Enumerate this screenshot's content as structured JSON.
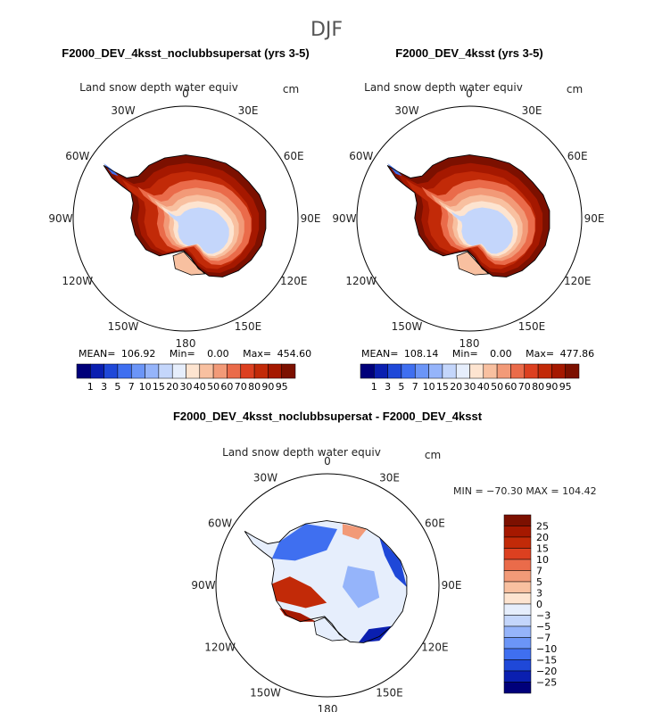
{
  "season": "DJF",
  "variable_label": "Land snow depth water equiv",
  "units": "cm",
  "lon_labels": [
    "0",
    "30E",
    "60E",
    "90E",
    "120E",
    "150E",
    "180",
    "150W",
    "120W",
    "90W",
    "60W",
    "30W"
  ],
  "panels": [
    {
      "title": "F2000_DEV_4ksst_noclubbsupersat (yrs 3-5)",
      "stats": {
        "mean_label": "MEAN=",
        "mean": "106.92",
        "min_label": "Min=",
        "min": "0.00",
        "max_label": "Max=",
        "max": "454.60"
      }
    },
    {
      "title": "F2000_DEV_4ksst (yrs 3-5)",
      "stats": {
        "mean_label": "MEAN=",
        "mean": "108.14",
        "min_label": "Min=",
        "min": "0.00",
        "max_label": "Max=",
        "max": "477.86"
      }
    }
  ],
  "diff_panel": {
    "title": "F2000_DEV_4ksst_noclubbsupersat - F2000_DEV_4ksst",
    "minmax_text": "MIN = −70.30 MAX = 104.42"
  },
  "chart_data": [
    {
      "type": "heatmap",
      "projection": "south-polar-stereographic",
      "title": "F2000_DEV_4ksst_noclubbsupersat (yrs 3-5)",
      "colorbar": {
        "levels": [
          "1",
          "3",
          "5",
          "7",
          "10",
          "15",
          "20",
          "30",
          "40",
          "50",
          "60",
          "70",
          "80",
          "90",
          "95"
        ],
        "colors": [
          "#00007a",
          "#0a1fb0",
          "#1f48d8",
          "#3f6ff0",
          "#6b95f7",
          "#95b4fa",
          "#c4d6fb",
          "#e6eefc",
          "#fde4d0",
          "#f8c0a0",
          "#f29a78",
          "#ea6b4a",
          "#dc4020",
          "#c22a08",
          "#a51800",
          "#7c1000"
        ]
      },
      "mean": 106.92,
      "min": 0.0,
      "max": 454.6
    },
    {
      "type": "heatmap",
      "projection": "south-polar-stereographic",
      "title": "F2000_DEV_4ksst (yrs 3-5)",
      "colorbar": {
        "levels": [
          "1",
          "3",
          "5",
          "7",
          "10",
          "15",
          "20",
          "30",
          "40",
          "50",
          "60",
          "70",
          "80",
          "90",
          "95"
        ],
        "colors": [
          "#00007a",
          "#0a1fb0",
          "#1f48d8",
          "#3f6ff0",
          "#6b95f7",
          "#95b4fa",
          "#c4d6fb",
          "#e6eefc",
          "#fde4d0",
          "#f8c0a0",
          "#f29a78",
          "#ea6b4a",
          "#dc4020",
          "#c22a08",
          "#a51800",
          "#7c1000"
        ]
      },
      "mean": 108.14,
      "min": 0.0,
      "max": 477.86
    },
    {
      "type": "heatmap",
      "projection": "south-polar-stereographic",
      "title": "F2000_DEV_4ksst_noclubbsupersat - F2000_DEV_4ksst",
      "colorbar": {
        "levels": [
          "25",
          "20",
          "15",
          "10",
          "7",
          "5",
          "3",
          "0",
          "−3",
          "−5",
          "−7",
          "−10",
          "−15",
          "−20",
          "−25"
        ],
        "colors": [
          "#7c1000",
          "#a51800",
          "#c22a08",
          "#dc4020",
          "#ea6b4a",
          "#f29a78",
          "#f8c0a0",
          "#fde4d0",
          "#e6eefc",
          "#c4d6fb",
          "#95b4fa",
          "#6b95f7",
          "#3f6ff0",
          "#1f48d8",
          "#0a1fb0",
          "#00007a"
        ]
      },
      "min": -70.3,
      "max": 104.42
    }
  ]
}
